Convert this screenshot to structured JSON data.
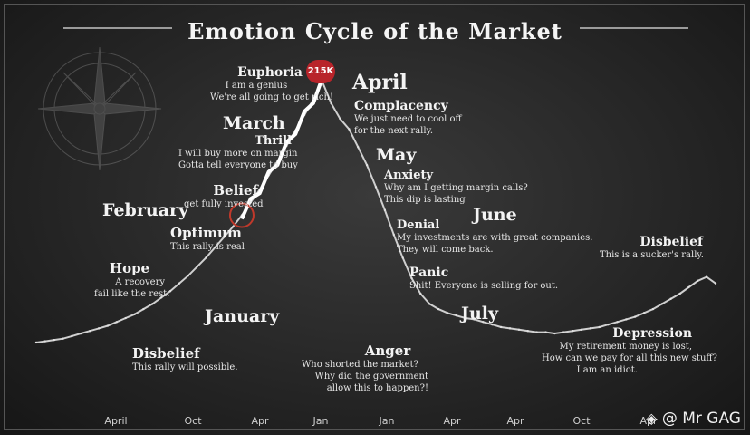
{
  "title": "Emotion Cycle of the Market",
  "watermark": "@ Mr GAG",
  "badge": "215K",
  "colors": {
    "price_line": "#cfcfcf",
    "arrow": "#ffffff",
    "badge": "#b8242a",
    "circle": "#c0392b"
  },
  "months": [
    "January",
    "February",
    "March",
    "April",
    "May",
    "June",
    "July"
  ],
  "stages": [
    {
      "name": "Disbelief",
      "text": [
        "This rally will possible."
      ]
    },
    {
      "name": "Hope",
      "text": [
        "A recovery",
        "fail like the rest."
      ]
    },
    {
      "name": "Optimum",
      "text": [
        "This rally is real"
      ]
    },
    {
      "name": "Belief",
      "text": [
        "get fully invested"
      ]
    },
    {
      "name": "Thrill",
      "text": [
        "I will buy more on margin",
        "Gotta tell everyone to buy"
      ]
    },
    {
      "name": "Euphoria",
      "text": [
        "I am a genius",
        "We're all going to get rich!"
      ]
    },
    {
      "name": "Complacency",
      "text": [
        "We just need to cool off",
        "for the next rally."
      ]
    },
    {
      "name": "Anxiety",
      "text": [
        "Why am I getting margin calls?",
        "This dip is lasting"
      ]
    },
    {
      "name": "Denial",
      "text": [
        "My investments are with great companies.",
        "They will come back."
      ]
    },
    {
      "name": "Panic",
      "text": [
        "Shit! Everyone is selling for out."
      ]
    },
    {
      "name": "Anger",
      "text": [
        "Who shorted the market?",
        "Why did the government",
        "allow this to happen?!"
      ]
    },
    {
      "name": "Depression",
      "text": [
        "My retirement money is lost,",
        "How can we pay for all this new stuff?",
        "I am an idiot."
      ]
    },
    {
      "name": "Disbelief",
      "text": [
        "This is a sucker's rally."
      ]
    }
  ],
  "chart_data": {
    "type": "line",
    "title": "Emotion Cycle of the Market",
    "x_tick_labels": [
      "April",
      "Oct",
      "Apr",
      "Jan",
      "Jan",
      "Apr",
      "Apr",
      "Oct",
      "Apr"
    ],
    "series": [
      {
        "values": [
          12,
          13,
          14,
          15,
          17,
          19,
          21,
          23,
          25,
          28,
          31,
          34,
          38,
          42,
          47,
          52,
          58,
          64,
          71,
          78,
          86,
          94,
          102,
          111,
          121,
          131,
          142,
          153,
          165,
          177,
          189,
          201,
          215,
          198,
          186,
          178,
          164,
          150,
          133,
          115,
          96,
          78,
          62,
          50,
          42,
          38,
          35,
          33,
          31,
          30,
          28,
          26,
          24,
          23,
          22,
          21,
          20,
          20,
          19,
          20,
          21,
          22,
          23,
          24,
          26,
          28,
          30,
          32,
          35,
          38,
          42,
          46,
          50,
          55,
          60,
          63,
          58
        ]
      }
    ],
    "peak_label": "215K",
    "grid": false,
    "legend": "none"
  }
}
